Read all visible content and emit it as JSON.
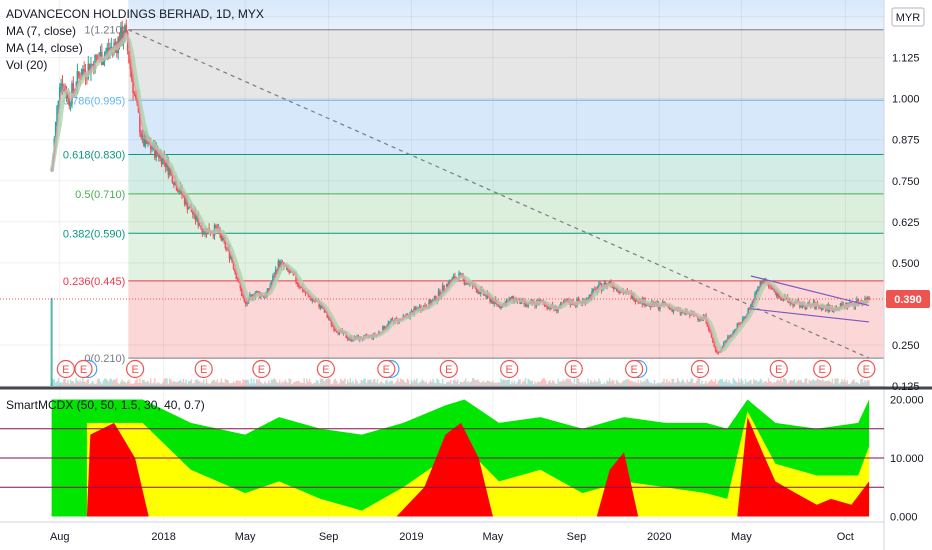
{
  "chart_data": [
    {
      "type": "candlestick",
      "title": "ADVANCECON HOLDINGS BERHAD, 1D, MYX",
      "studies": [
        "MA (7, close)",
        "MA (14, close)",
        "Vol (20)"
      ],
      "currency": "MYR",
      "last_price": "0.390",
      "last_price_color": "#ef5350",
      "x_tick_labels": [
        "Aug",
        "2018",
        "May",
        "Sep",
        "2019",
        "May",
        "Sep",
        "2020",
        "May",
        "Oct"
      ],
      "y_tick_labels": [
        "1.250",
        "1.125",
        "1.000",
        "0.875",
        "0.750",
        "0.625",
        "0.500",
        "0.390",
        "0.250",
        "0.125"
      ],
      "ylim": [
        0.125,
        1.27
      ],
      "fibonacci": [
        {
          "label": "1(1.210)",
          "value": 1.21,
          "color": "#787b86"
        },
        {
          "label": "0.786(0.995)",
          "value": 0.995,
          "color": "#64b5f6"
        },
        {
          "label": "0.618(0.830)",
          "value": 0.83,
          "color": "#089981"
        },
        {
          "label": "0.5(0.710)",
          "value": 0.71,
          "color": "#4caf50"
        },
        {
          "label": "0.382(0.590)",
          "value": 0.59,
          "color": "#089981"
        },
        {
          "label": "0.236(0.445)",
          "value": 0.445,
          "color": "#f23645"
        },
        {
          "label": "0(0.210)",
          "value": 0.21,
          "color": "#787b86"
        }
      ],
      "price_series": {
        "dates": [
          "2017-07-20",
          "2017-08-01",
          "2017-08-15",
          "2017-09-01",
          "2017-09-15",
          "2017-10-01",
          "2017-10-20",
          "2017-11-05",
          "2017-11-20",
          "2017-12-01",
          "2017-12-15",
          "2018-01-01",
          "2018-01-20",
          "2018-02-10",
          "2018-03-01",
          "2018-03-20",
          "2018-04-10",
          "2018-05-01",
          "2018-05-15",
          "2018-06-01",
          "2018-06-20",
          "2018-07-10",
          "2018-08-01",
          "2018-08-20",
          "2018-09-10",
          "2018-10-01",
          "2018-10-20",
          "2018-11-10",
          "2018-12-01",
          "2018-12-20",
          "2019-01-10",
          "2019-02-01",
          "2019-02-20",
          "2019-03-10",
          "2019-04-01",
          "2019-04-20",
          "2019-05-10",
          "2019-06-01",
          "2019-06-20",
          "2019-07-10",
          "2019-08-01",
          "2019-08-20",
          "2019-09-10",
          "2019-10-01",
          "2019-10-20",
          "2019-11-10",
          "2019-12-01",
          "2019-12-20",
          "2020-01-10",
          "2020-02-01",
          "2020-02-20",
          "2020-03-10",
          "2020-03-25",
          "2020-04-10",
          "2020-05-01",
          "2020-05-15",
          "2020-06-01",
          "2020-06-20",
          "2020-07-10",
          "2020-08-01",
          "2020-08-20",
          "2020-09-10",
          "2020-10-01",
          "2020-10-20",
          "2020-11-05"
        ],
        "close": [
          0.78,
          1.06,
          1.0,
          1.08,
          1.1,
          1.13,
          1.16,
          1.2,
          1.0,
          0.87,
          0.85,
          0.82,
          0.74,
          0.66,
          0.6,
          0.6,
          0.52,
          0.37,
          0.41,
          0.4,
          0.5,
          0.46,
          0.4,
          0.37,
          0.3,
          0.27,
          0.27,
          0.28,
          0.32,
          0.33,
          0.36,
          0.38,
          0.43,
          0.46,
          0.43,
          0.4,
          0.37,
          0.39,
          0.37,
          0.38,
          0.36,
          0.38,
          0.38,
          0.42,
          0.44,
          0.41,
          0.39,
          0.37,
          0.37,
          0.35,
          0.34,
          0.33,
          0.22,
          0.27,
          0.32,
          0.37,
          0.45,
          0.41,
          0.38,
          0.37,
          0.37,
          0.36,
          0.37,
          0.38,
          0.39
        ],
        "ma7_color": "#f48fb1",
        "ma14_color": "#a5d6a7",
        "up_color": "#26a69a",
        "down_color": "#ef5350"
      },
      "trendlines": [
        {
          "from": [
            "2017-11-10",
            1.21
          ],
          "to": [
            "2020-11-05",
            0.21
          ],
          "style": "dashed",
          "color": "#787b86"
        },
        {
          "from": [
            "2020-05-15",
            0.46
          ],
          "to": [
            "2020-11-05",
            0.37
          ],
          "style": "solid",
          "color": "#7e57c2"
        },
        {
          "from": [
            "2020-05-15",
            0.36
          ],
          "to": [
            "2020-11-05",
            0.32
          ],
          "style": "solid",
          "color": "#7e57c2"
        }
      ],
      "earnings_markers": {
        "label": "E",
        "dates": [
          "2017-08-10",
          "2017-09-05",
          "2017-11-20",
          "2018-03-01",
          "2018-05-25",
          "2018-08-28",
          "2018-11-25",
          "2019-02-25",
          "2019-05-25",
          "2019-08-28",
          "2019-11-25",
          "2020-03-01",
          "2020-06-25",
          "2020-08-28",
          "2020-11-01"
        ],
        "blue_circles": [
          "2017-09-12",
          "2018-12-01",
          "2019-12-01"
        ]
      }
    },
    {
      "type": "area",
      "title": "SmartMCDX (50, 50, 1.5, 30, 40, 0.7)",
      "y_tick_labels": [
        "20.000",
        "10.000",
        "0.000"
      ],
      "ylim": [
        -0.6,
        20.6
      ],
      "reference_lines": [
        15,
        10,
        5
      ],
      "reference_line_color": "#880e4f",
      "colors": {
        "green": "#00e600",
        "yellow": "#ffff00",
        "red": "#ff0000"
      },
      "series": [
        {
          "name": "green",
          "dates": [
            "2017-07-20",
            "2017-09-10",
            "2017-09-10",
            "2017-12-01",
            "2018-02-10",
            "2018-05-01",
            "2018-06-20",
            "2018-08-20",
            "2018-10-20",
            "2018-12-20",
            "2019-02-20",
            "2019-03-20",
            "2019-05-10",
            "2019-07-10",
            "2019-09-10",
            "2019-11-10",
            "2020-01-10",
            "2020-03-10",
            "2020-04-10",
            "2020-05-10",
            "2020-06-20",
            "2020-08-20",
            "2020-10-20",
            "2020-11-05"
          ],
          "values": [
            20,
            20,
            20,
            20,
            16,
            14,
            17,
            15,
            14,
            16,
            19,
            20,
            16,
            17,
            15,
            17,
            16,
            16,
            15,
            20,
            16,
            15,
            16,
            20
          ]
        },
        {
          "name": "yellow",
          "dates": [
            "2017-07-20",
            "2017-09-10",
            "2017-09-10",
            "2017-12-01",
            "2018-02-10",
            "2018-05-01",
            "2018-06-20",
            "2018-08-20",
            "2018-10-20",
            "2018-12-20",
            "2019-02-20",
            "2019-03-20",
            "2019-05-10",
            "2019-07-10",
            "2019-09-10",
            "2019-11-10",
            "2020-01-10",
            "2020-03-10",
            "2020-04-10",
            "2020-05-10",
            "2020-06-20",
            "2020-08-20",
            "2020-10-20",
            "2020-11-05"
          ],
          "values": [
            0,
            0,
            16,
            16,
            8,
            4,
            6,
            3,
            1,
            5,
            10,
            12,
            6,
            8,
            4,
            6,
            5,
            4,
            3,
            18,
            9,
            7,
            7,
            12
          ]
        },
        {
          "name": "red",
          "dates": [
            "2017-07-20",
            "2017-09-10",
            "2017-09-15",
            "2017-10-20",
            "2017-11-20",
            "2017-12-10",
            "2018-12-10",
            "2019-01-20",
            "2019-02-20",
            "2019-03-15",
            "2019-04-10",
            "2019-05-01",
            "2019-10-01",
            "2019-10-20",
            "2019-11-10",
            "2019-12-01",
            "2020-04-25",
            "2020-05-10",
            "2020-06-01",
            "2020-06-20",
            "2020-07-20",
            "2020-08-20",
            "2020-09-10",
            "2020-10-10",
            "2020-11-05"
          ],
          "values": [
            0,
            0,
            14,
            16,
            10,
            0,
            0,
            5,
            14,
            16,
            10,
            0,
            0,
            8,
            11,
            0,
            0,
            17,
            11,
            6,
            4,
            2,
            3,
            2,
            6
          ]
        }
      ]
    }
  ]
}
